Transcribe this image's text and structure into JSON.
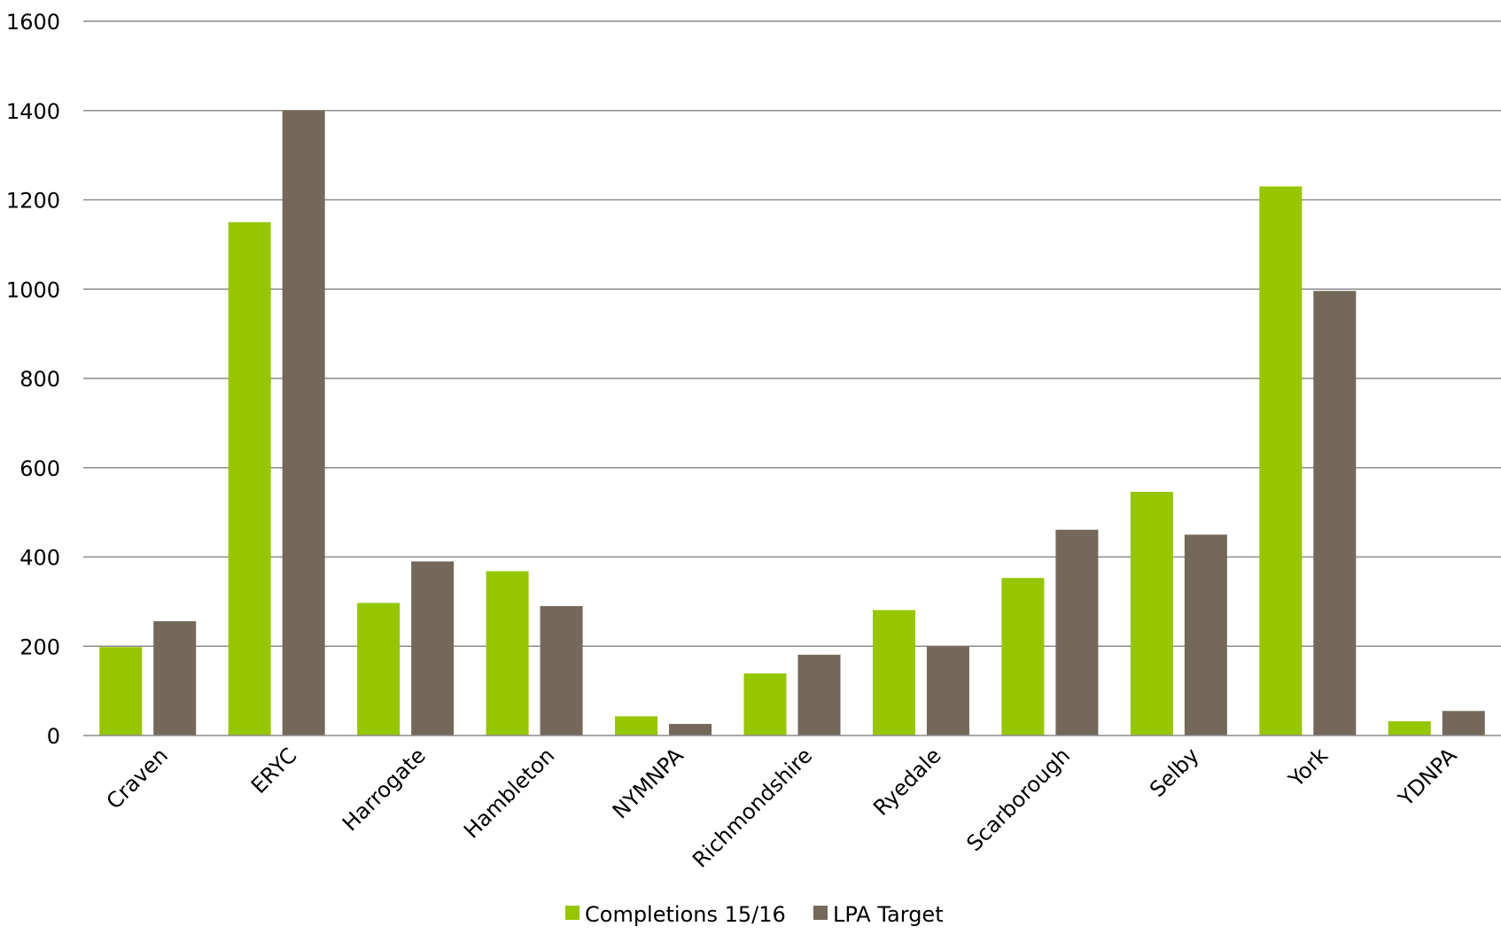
{
  "chart_data": {
    "type": "bar",
    "categories": [
      "Craven",
      "ERYC",
      "Harrogate",
      "Hambleton",
      "NYMNPA",
      "Richmondshire",
      "Ryedale",
      "Scarborough",
      "Selby",
      "York",
      "YDNPA"
    ],
    "series": [
      {
        "name": "Completions 15/16",
        "color": "#95c600",
        "values": [
          198,
          1150,
          297,
          368,
          43,
          139,
          281,
          353,
          546,
          1230,
          32
        ]
      },
      {
        "name": "LPA Target",
        "color": "#74685a",
        "values": [
          256,
          1400,
          390,
          290,
          26,
          181,
          200,
          461,
          450,
          996,
          55
        ]
      }
    ],
    "yticks": [
      "0",
      "200",
      "400",
      "600",
      "800",
      "1000",
      "1200",
      "1400",
      "1600"
    ],
    "ylim": [
      0,
      1600
    ],
    "grid": true,
    "legend_position": "bottom",
    "title": "",
    "xlabel": "",
    "ylabel": ""
  }
}
